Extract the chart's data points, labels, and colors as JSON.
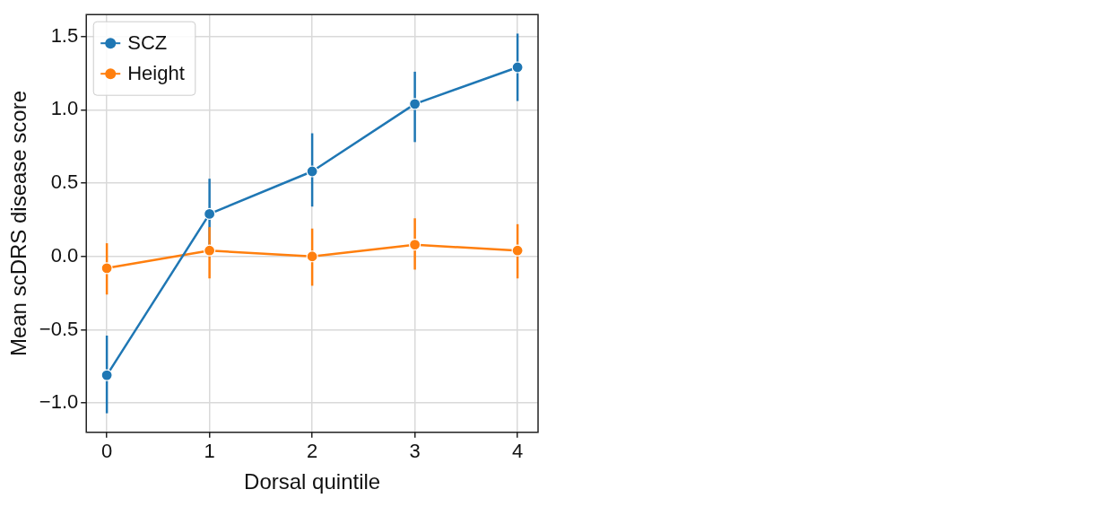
{
  "chart_data": {
    "type": "line",
    "xlabel": "Dorsal quintile",
    "ylabel": "Mean scDRS disease score",
    "x": [
      0,
      1,
      2,
      3,
      4
    ],
    "xlim": [
      -0.2,
      4.2
    ],
    "xticks": [
      0,
      1,
      2,
      3,
      4
    ],
    "ylim": [
      -1.2,
      1.65
    ],
    "yticks": [
      {
        "value": -1,
        "label": "−1.0"
      },
      -0.5,
      {
        "value": 0,
        "label": "0.0"
      },
      0.5,
      {
        "value": 1,
        "label": "1.0"
      },
      1.5
    ],
    "grid": true,
    "legend": "top left",
    "marker": "circle",
    "series": [
      {
        "name": "SCZ",
        "color": "#1f77b4",
        "values": [
          -0.81,
          0.29,
          0.58,
          1.04,
          1.29
        ],
        "errors": [
          [
            -1.07,
            -0.54
          ],
          [
            0.05,
            0.53
          ],
          [
            0.34,
            0.84
          ],
          [
            0.78,
            1.26
          ],
          [
            1.06,
            1.52
          ]
        ]
      },
      {
        "name": "Height",
        "color": "#ff7f0e",
        "values": [
          -0.08,
          0.04,
          0.0,
          0.08,
          0.04
        ],
        "errors": [
          [
            -0.26,
            0.09
          ],
          [
            -0.15,
            0.2
          ],
          [
            -0.2,
            0.19
          ],
          [
            -0.09,
            0.26
          ],
          [
            -0.15,
            0.22
          ]
        ]
      }
    ]
  }
}
